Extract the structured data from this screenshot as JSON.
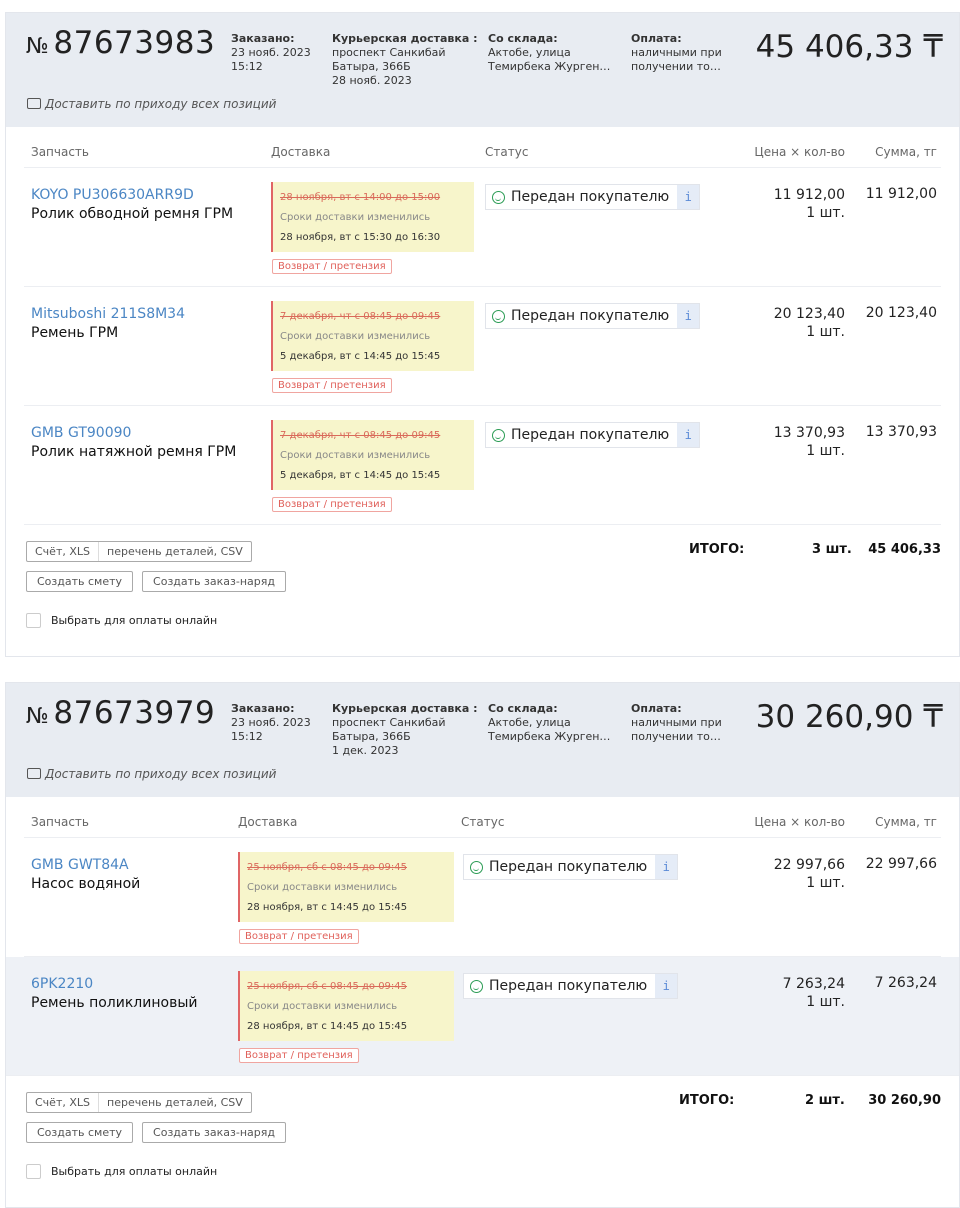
{
  "orders": [
    {
      "number": "87673983",
      "number_prefix": "№",
      "ordered_label": "Заказано:",
      "ordered_date": "23 нояб. 2023",
      "ordered_time": "15:12",
      "courier_label": "Курьерская доставка :",
      "courier_addr1": "проспект Санкибай",
      "courier_addr2": "Батыра, 366Б",
      "courier_date": "28 нояб. 2023",
      "warehouse_label": "Со склада:",
      "warehouse_line1": "Актобе, улица",
      "warehouse_line2": "Темирбека Журген…",
      "payment_label": "Оплата:",
      "payment_line1": "наличными при",
      "payment_line2": "получении то…",
      "total": "45 406,33 ₸",
      "note": "Доставить по приходу всех позиций",
      "columns": {
        "part": "Запчасть",
        "delivery": "Доставка",
        "status": "Статус",
        "price": "Цена × кол-во",
        "sum": "Сумма, тг"
      },
      "items": [
        {
          "sku": "KOYO PU306630ARR9D",
          "name": "Ролик обводной ремня ГРМ",
          "old_delivery": "28 ноября, вт с 14:00 до 15:00",
          "changed": "Сроки доставки изменились",
          "new_delivery": "28 ноября, вт с 15:30 до 16:30",
          "claim": "Возврат / претензия",
          "status": "Передан покупателю",
          "info": "i",
          "price": "11 912,00",
          "qty": "1 шт.",
          "sum": "11 912,00"
        },
        {
          "sku": "Mitsuboshi 211S8M34",
          "name": "Ремень ГРМ",
          "old_delivery": "7 декабря, чт с 08:45 до 09:45",
          "changed": "Сроки доставки изменились",
          "new_delivery": "5 декабря, вт с 14:45 до 15:45",
          "claim": "Возврат / претензия",
          "status": "Передан покупателю",
          "info": "i",
          "price": "20 123,40",
          "qty": "1 шт.",
          "sum": "20 123,40"
        },
        {
          "sku": "GMB GT90090",
          "name": "Ролик натяжной ремня ГРМ",
          "old_delivery": "7 декабря, чт с 08:45 до 09:45",
          "changed": "Сроки доставки изменились",
          "new_delivery": "5 декабря, вт с 14:45 до 15:45",
          "claim": "Возврат / претензия",
          "status": "Передан покупателю",
          "info": "i",
          "price": "13 370,93",
          "qty": "1 шт.",
          "sum": "13 370,93"
        }
      ],
      "invoice_xls": "Счёт, XLS",
      "parts_csv": "перечень деталей, CSV",
      "create_estimate": "Создать смету",
      "create_workorder": "Создать заказ-наряд",
      "pay_online": "Выбрать для оплаты онлайн",
      "itogo_label": "ИТОГО:",
      "itogo_qty": "3 шт.",
      "itogo_sum": "45 406,33"
    },
    {
      "number": "87673979",
      "number_prefix": "№",
      "ordered_label": "Заказано:",
      "ordered_date": "23 нояб. 2023",
      "ordered_time": "15:12",
      "courier_label": "Курьерская доставка :",
      "courier_addr1": "проспект Санкибай",
      "courier_addr2": "Батыра, 366Б",
      "courier_date": "1 дек. 2023",
      "warehouse_label": "Со склада:",
      "warehouse_line1": "Актобе, улица",
      "warehouse_line2": "Темирбека Журген…",
      "payment_label": "Оплата:",
      "payment_line1": "наличными при",
      "payment_line2": "получении то…",
      "total": "30 260,90 ₸",
      "note": "Доставить по приходу всех позиций",
      "columns": {
        "part": "Запчасть",
        "delivery": "Доставка",
        "status": "Статус",
        "price": "Цена × кол-во",
        "sum": "Сумма, тг"
      },
      "items": [
        {
          "sku": "GMB GWT84A",
          "name": "Насос водяной",
          "old_delivery": "25 ноября, сб с 08:45 до 09:45",
          "changed": "Сроки доставки изменились",
          "new_delivery": "28 ноября, вт с 14:45 до 15:45",
          "claim": "Возврат / претензия",
          "status": "Передан покупателю",
          "info": "i",
          "price": "22 997,66",
          "qty": "1 шт.",
          "sum": "22 997,66"
        },
        {
          "sku": "6PK2210",
          "name": "Ремень поликлиновый",
          "old_delivery": "25 ноября, сб с 08:45 до 09:45",
          "changed": "Сроки доставки изменились",
          "new_delivery": "28 ноября, вт с 14:45 до 15:45",
          "claim": "Возврат / претензия",
          "status": "Передан покупателю",
          "info": "i",
          "price": "7 263,24",
          "qty": "1 шт.",
          "sum": "7 263,24"
        }
      ],
      "invoice_xls": "Счёт, XLS",
      "parts_csv": "перечень деталей, CSV",
      "create_estimate": "Создать смету",
      "create_workorder": "Создать заказ-наряд",
      "pay_online": "Выбрать для оплаты онлайн",
      "itogo_label": "ИТОГО:",
      "itogo_qty": "2 шт.",
      "itogo_sum": "30 260,90"
    }
  ]
}
